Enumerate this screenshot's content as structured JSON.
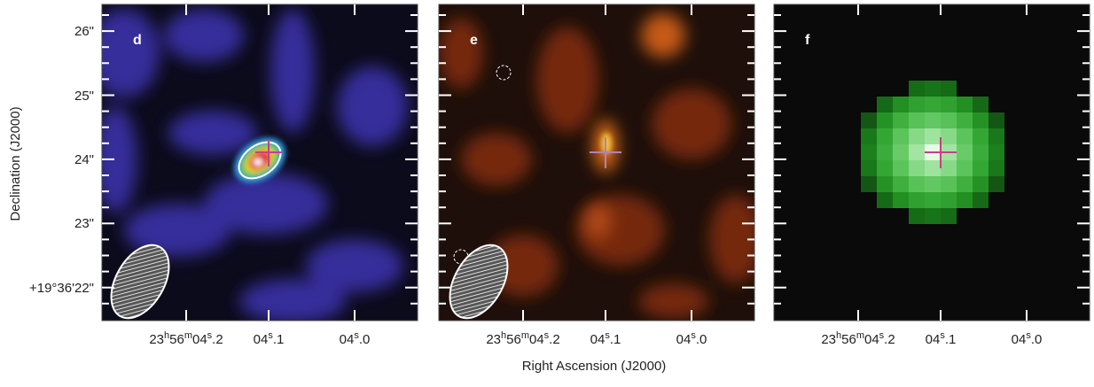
{
  "figure": {
    "panels": [
      {
        "label": "d"
      },
      {
        "label": "e"
      },
      {
        "label": "f"
      }
    ],
    "y_axis": {
      "label": "Declination (J2000)",
      "ticks": [
        "26\"",
        "25\"",
        "24\"",
        "23\"",
        "+19°36'22\""
      ]
    },
    "x_axis": {
      "label": "Right Ascension (J2000)",
      "ticks": [
        {
          "parts": [
            "23",
            "h",
            "56",
            "m",
            "04",
            "s",
            ".2"
          ]
        },
        {
          "parts": [
            "04",
            "s",
            ".1"
          ]
        },
        {
          "parts": [
            "04",
            "s",
            ".0"
          ]
        }
      ]
    }
  }
}
